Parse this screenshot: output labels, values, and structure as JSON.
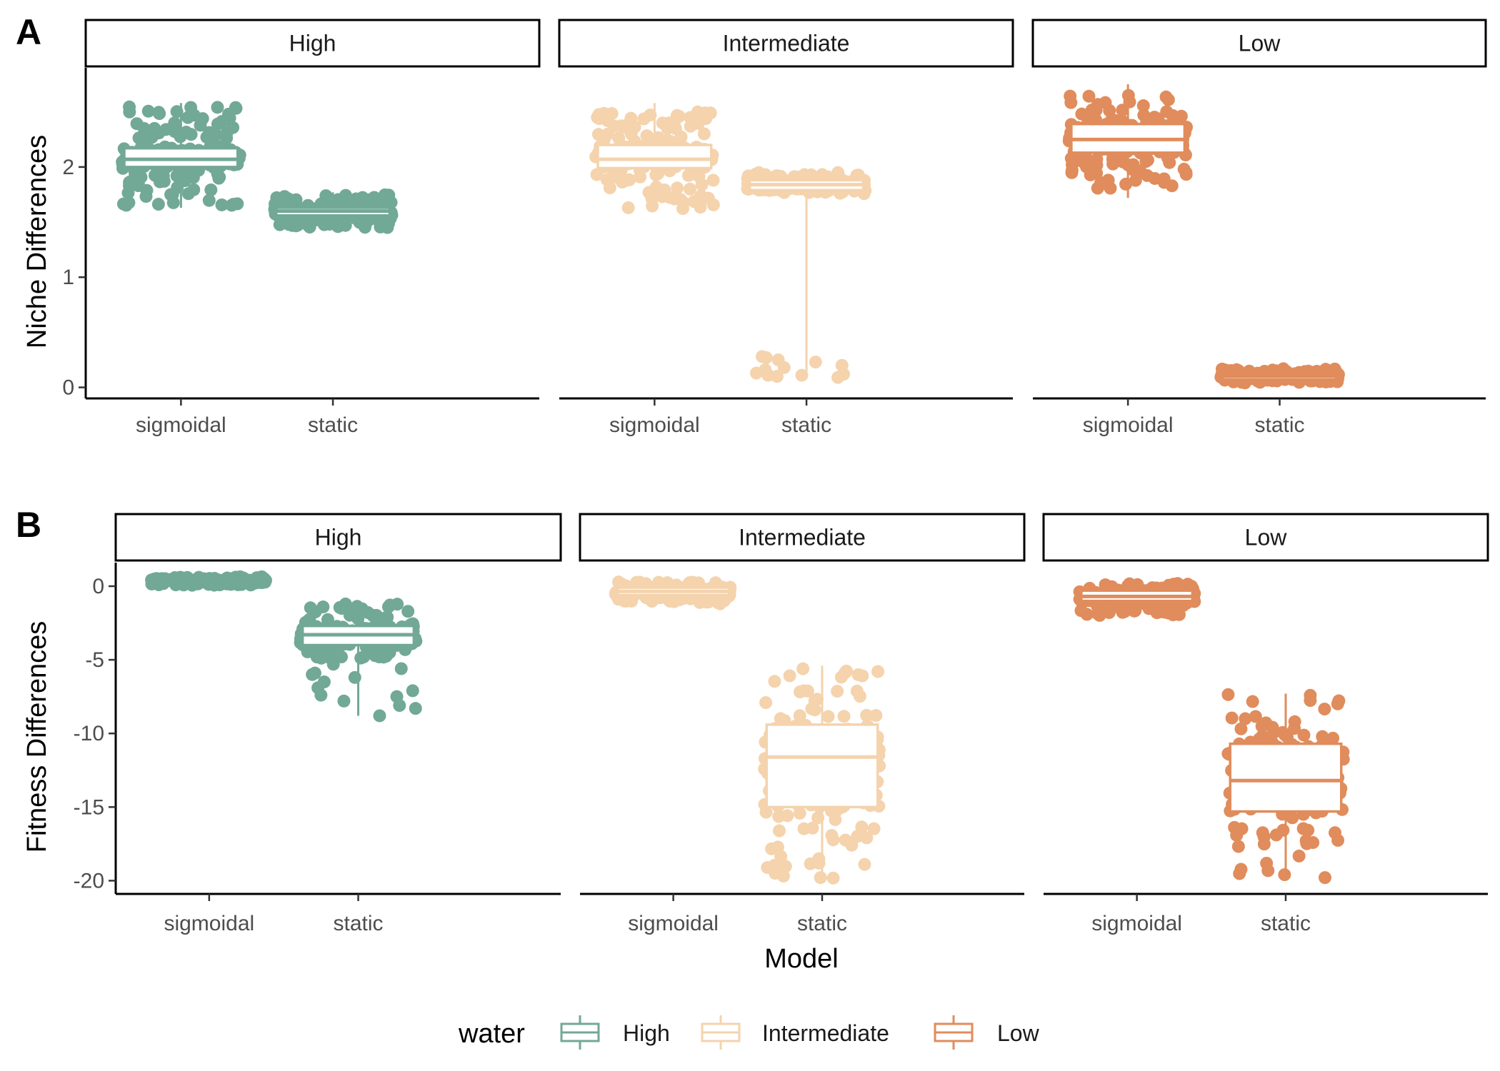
{
  "colors": {
    "High": "#72a896",
    "Intermediate": "#f4d3ad",
    "Low": "#e08c5c"
  },
  "legend": {
    "title": "water",
    "items": [
      {
        "label": "High",
        "color_key": "High"
      },
      {
        "label": "Intermediate",
        "color_key": "Intermediate"
      },
      {
        "label": "Low",
        "color_key": "Low"
      }
    ]
  },
  "x_axis_title": "Model",
  "chart_data": [
    {
      "tag": "A",
      "type": "box-jitter",
      "ylabel": "Niche Differences",
      "ylim": [
        -0.1,
        2.9
      ],
      "yticks": [
        0,
        1,
        2
      ],
      "ytick_labels": [
        "0",
        "1",
        "2"
      ],
      "categories": [
        "sigmoidal",
        "static"
      ],
      "facets": [
        {
          "name": "High",
          "color_key": "High",
          "groups": [
            {
              "x": "sigmoidal",
              "q1": 2.0,
              "median": 2.07,
              "q3": 2.17,
              "ymin": 1.63,
              "ymax": 2.58,
              "pts_lo": 1.65,
              "pts_hi": 2.55,
              "n": 230
            },
            {
              "x": "static",
              "q1": 1.56,
              "median": 1.6,
              "q3": 1.63,
              "ymin": 1.44,
              "ymax": 1.77,
              "pts_lo": 1.45,
              "pts_hi": 1.75,
              "n": 230
            }
          ]
        },
        {
          "name": "Intermediate",
          "color_key": "Intermediate",
          "groups": [
            {
              "x": "sigmoidal",
              "q1": 1.99,
              "median": 2.07,
              "q3": 2.2,
              "ymin": 1.6,
              "ymax": 2.58,
              "pts_lo": 1.62,
              "pts_hi": 2.5,
              "n": 220
            },
            {
              "x": "static",
              "q1": 1.79,
              "median": 1.84,
              "q3": 1.88,
              "ymin": 0.08,
              "ymax": 1.95,
              "pts_lo": 1.75,
              "pts_hi": 1.95,
              "n": 220,
              "outliers": [
                0.16,
                0.2,
                0.25,
                0.11,
                0.13,
                0.09,
                0.27,
                0.23,
                0.18,
                0.12,
                0.28,
                0.1,
                0.11
              ]
            }
          ]
        },
        {
          "name": "Low",
          "color_key": "Low",
          "groups": [
            {
              "x": "sigmoidal",
              "q1": 2.13,
              "median": 2.25,
              "q3": 2.39,
              "ymin": 1.72,
              "ymax": 2.75,
              "pts_lo": 1.8,
              "pts_hi": 2.65,
              "n": 230
            },
            {
              "x": "static",
              "q1": 0.07,
              "median": 0.1,
              "q3": 0.12,
              "ymin": 0.03,
              "ymax": 0.18,
              "pts_lo": 0.04,
              "pts_hi": 0.17,
              "n": 230
            }
          ]
        }
      ]
    },
    {
      "tag": "B",
      "type": "box-jitter",
      "ylabel": "Fitness Differences",
      "ylim": [
        -20.9,
        1.6
      ],
      "yticks": [
        0,
        -5,
        -10,
        -15,
        -20
      ],
      "ytick_labels": [
        "0",
        "-5",
        "-10",
        "-15",
        "-20"
      ],
      "categories": [
        "sigmoidal",
        "static"
      ],
      "facets": [
        {
          "name": "High",
          "color_key": "High",
          "groups": [
            {
              "x": "sigmoidal",
              "q1": 0.25,
              "median": 0.35,
              "q3": 0.45,
              "ymin": 0.0,
              "ymax": 0.7,
              "pts_lo": 0.05,
              "pts_hi": 0.65,
              "n": 200
            },
            {
              "x": "static",
              "q1": -4.0,
              "median": -3.3,
              "q3": -2.7,
              "ymin": -8.8,
              "ymax": -1.1,
              "pts_lo": -5.0,
              "pts_hi": -1.2,
              "n": 220,
              "outliers": [
                -5.6,
                -6.2,
                -6.9,
                -7.4,
                -8.1,
                -8.8,
                -7.8,
                -6.5,
                -8.3,
                -5.9,
                -7.1,
                -6.0,
                -5.3,
                -7.5
              ]
            }
          ]
        },
        {
          "name": "Intermediate",
          "color_key": "Intermediate",
          "groups": [
            {
              "x": "sigmoidal",
              "q1": -0.6,
              "median": -0.35,
              "q3": -0.1,
              "ymin": -1.3,
              "ymax": 0.4,
              "pts_lo": -1.2,
              "pts_hi": 0.3,
              "n": 200
            },
            {
              "x": "static",
              "q1": -15.0,
              "median": -11.6,
              "q3": -9.4,
              "ymin": -19.9,
              "ymax": -5.4,
              "pts_lo": -19.9,
              "pts_hi": -5.6,
              "n": 190
            }
          ]
        },
        {
          "name": "Low",
          "color_key": "Low",
          "groups": [
            {
              "x": "sigmoidal",
              "q1": -1.0,
              "median": -0.7,
              "q3": -0.3,
              "ymin": -2.0,
              "ymax": 0.2,
              "pts_lo": -2.0,
              "pts_hi": 0.2,
              "n": 220
            },
            {
              "x": "static",
              "q1": -15.3,
              "median": -13.2,
              "q3": -10.7,
              "ymin": -19.9,
              "ymax": -7.3,
              "pts_lo": -19.9,
              "pts_hi": -7.3,
              "n": 230
            }
          ]
        }
      ]
    }
  ]
}
